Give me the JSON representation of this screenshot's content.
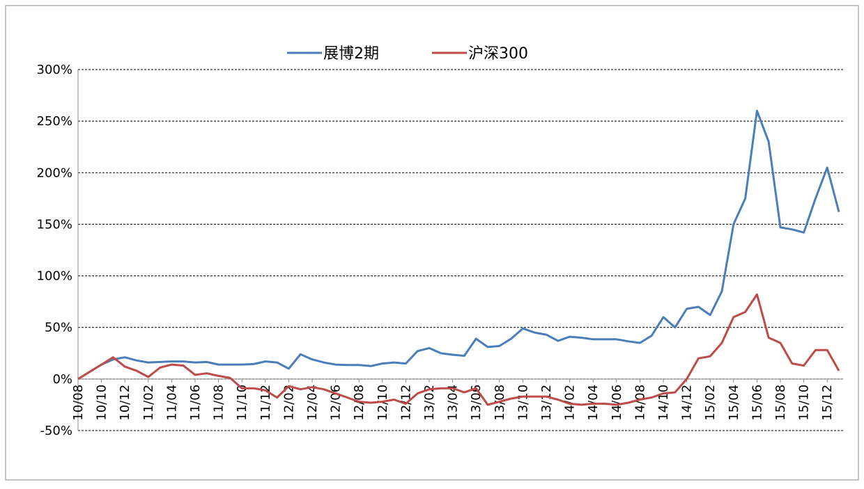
{
  "chart_data": {
    "type": "line",
    "categories": [
      "10/08",
      null,
      "10/10",
      null,
      "10/12",
      null,
      "11/02",
      null,
      "11/04",
      null,
      "11/06",
      null,
      "11/08",
      null,
      "11/10",
      null,
      "11/12",
      null,
      "12/02",
      null,
      "12/04",
      null,
      "12/06",
      null,
      "12/08",
      null,
      "12/10",
      null,
      "12/12",
      null,
      "13/02",
      null,
      "13/04",
      null,
      "13/06",
      null,
      "13/08",
      null,
      "13/10",
      null,
      "13/12",
      null,
      "14/02",
      null,
      "14/04",
      null,
      "14/06",
      null,
      "14/08",
      null,
      "14/10",
      null,
      "14/12",
      null,
      "15/02",
      null,
      "15/04",
      null,
      "15/06",
      null,
      "15/08",
      null,
      "15/10",
      null,
      "15/12",
      null
    ],
    "series": [
      {
        "name": "展博2期",
        "color": "#4a7ebb",
        "values": [
          0,
          7,
          14,
          19,
          21,
          18,
          16,
          16.5,
          17,
          17,
          16,
          16.5,
          14,
          14,
          14,
          14.5,
          17,
          16,
          10,
          24,
          19,
          16,
          14,
          13.5,
          13.5,
          12.5,
          15,
          16,
          15,
          27,
          30,
          25,
          23.5,
          22.5,
          39,
          31,
          32,
          39,
          49,
          45,
          43,
          37,
          41,
          40,
          38.5,
          38.5,
          38.5,
          36.5,
          35,
          42,
          60,
          50,
          68,
          70,
          62,
          85,
          150,
          175,
          260,
          230,
          147,
          145,
          142,
          175,
          205,
          162
        ]
      },
      {
        "name": "沪深300",
        "color": "#be4b48",
        "values": [
          0,
          7,
          14,
          21,
          12,
          8,
          2,
          11,
          14,
          13,
          4,
          5.5,
          3,
          1,
          -9,
          -9,
          -11,
          -18,
          -7,
          -10,
          -8,
          -10,
          -14,
          -18,
          -22,
          -23,
          -22,
          -20,
          -24,
          -14,
          -10,
          -9,
          -9,
          -13,
          -9,
          -25,
          -22,
          -19,
          -17,
          -17,
          -17,
          -20,
          -24,
          -25,
          -24,
          -24,
          -25,
          -23,
          -20,
          -18,
          -14,
          -13,
          0,
          20,
          22,
          35,
          60,
          65,
          82,
          40,
          35,
          15,
          13,
          28,
          28,
          8
        ]
      }
    ],
    "ylim": [
      -50,
      300
    ],
    "yticks": [
      {
        "value": -50,
        "label": "-50%"
      },
      {
        "value": 0,
        "label": "0%"
      },
      {
        "value": 50,
        "label": "50%"
      },
      {
        "value": 100,
        "label": "100%"
      },
      {
        "value": 150,
        "label": "150%"
      },
      {
        "value": 200,
        "label": "200%"
      },
      {
        "value": 250,
        "label": "250%"
      },
      {
        "value": 300,
        "label": "300%"
      }
    ],
    "grid": true
  }
}
